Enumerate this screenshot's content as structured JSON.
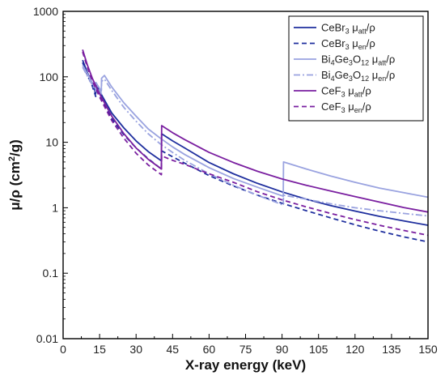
{
  "chart_data": {
    "type": "line",
    "xlabel": "X-ray energy (keV)",
    "ylabel_main": "μ/ρ (cm",
    "ylabel_sup": "2",
    "ylabel_tail": "/g)",
    "xlim": [
      0,
      150
    ],
    "ylim": [
      0.01,
      1000
    ],
    "y_scale": "log",
    "x_ticks": [
      0,
      15,
      30,
      45,
      60,
      75,
      90,
      105,
      120,
      135,
      150
    ],
    "x_tick_labels": [
      "0",
      "15",
      "30",
      "45",
      "60",
      "75",
      "90",
      "105",
      "120",
      "135",
      "150"
    ],
    "y_ticks": [
      0.01,
      0.1,
      1,
      10,
      100,
      1000
    ],
    "y_tick_labels": [
      "0.01",
      "0.1",
      "1",
      "10",
      "100",
      "1000"
    ],
    "grid": false,
    "legend_position": "top-right",
    "series": [
      {
        "name": "CeBr3 μatt/ρ",
        "legend": {
          "main": "CeBr",
          "sub1": "3",
          "mid": " μ",
          "sub2": "att",
          "tail": "/ρ"
        },
        "color": "#1f2f9e",
        "dash": "solid",
        "width": 1.8,
        "x": [
          8,
          10,
          12,
          13.4,
          13.5,
          15,
          20,
          25,
          30,
          35,
          40.4,
          40.5,
          45,
          50,
          60,
          70,
          80,
          90,
          100,
          110,
          120,
          130,
          140,
          150
        ],
        "y": [
          180,
          115,
          80,
          55,
          78,
          60,
          28,
          16.5,
          10.5,
          7.2,
          5.2,
          13.5,
          10.5,
          8.2,
          4.9,
          3.3,
          2.35,
          1.75,
          1.35,
          1.08,
          0.89,
          0.74,
          0.63,
          0.54
        ]
      },
      {
        "name": "CeBr3 μen/ρ",
        "legend": {
          "main": "CeBr",
          "sub1": "3",
          "mid": " μ",
          "sub2": "en",
          "tail": "/ρ"
        },
        "color": "#1f2f9e",
        "dash": "6,4",
        "width": 1.8,
        "x": [
          8,
          10,
          12,
          13.4,
          13.5,
          15,
          20,
          25,
          30,
          35,
          40.4,
          40.5,
          45,
          50,
          60,
          70,
          80,
          90,
          100,
          110,
          120,
          130,
          140,
          150
        ],
        "y": [
          165,
          105,
          72,
          50,
          70,
          52,
          23,
          13,
          8.2,
          5.6,
          3.9,
          7.4,
          6.0,
          4.8,
          3.1,
          2.15,
          1.55,
          1.17,
          0.9,
          0.7,
          0.55,
          0.44,
          0.36,
          0.3
        ]
      },
      {
        "name": "Bi4Ge3O12 μatt/ρ",
        "legend": {
          "main": "Bi",
          "sub1": "4",
          "mid": "Ge",
          "sub2": "3",
          "mid2": "O",
          "sub3": "12",
          "mid3": " μ",
          "sub4": "att",
          "tail": "/ρ"
        },
        "color": "#9aa3e0",
        "dash": "solid",
        "width": 1.8,
        "x": [
          8,
          11,
          13.4,
          13.5,
          15.7,
          15.8,
          17,
          20,
          25,
          30,
          35,
          40,
          45,
          50,
          60,
          70,
          80,
          90.5,
          90.6,
          100,
          110,
          120,
          130,
          140,
          150
        ],
        "y": [
          150,
          95,
          65,
          82,
          60,
          95,
          105,
          70,
          40,
          25,
          16,
          11.5,
          8.5,
          6.5,
          4.1,
          2.8,
          2.05,
          1.5,
          5.0,
          3.9,
          3.05,
          2.45,
          2.0,
          1.7,
          1.45
        ]
      },
      {
        "name": "Bi4Ge3O12 μen/ρ",
        "legend": {
          "main": "Bi",
          "sub1": "4",
          "mid": "Ge",
          "sub2": "3",
          "mid2": "O",
          "sub3": "12",
          "mid3": " μ",
          "sub4": "en",
          "tail": "/ρ"
        },
        "color": "#9aa3e0",
        "dash": "8,3,2,3",
        "width": 1.8,
        "x": [
          8,
          11,
          13.4,
          13.5,
          15.7,
          15.8,
          17,
          20,
          25,
          30,
          35,
          40,
          45,
          50,
          60,
          70,
          80,
          90.5,
          90.6,
          100,
          110,
          120,
          130,
          140,
          150
        ],
        "y": [
          140,
          88,
          60,
          75,
          55,
          85,
          92,
          62,
          34,
          21,
          13.5,
          9.4,
          7.0,
          5.3,
          3.3,
          2.2,
          1.55,
          1.1,
          1.55,
          1.35,
          1.15,
          1.0,
          0.9,
          0.82,
          0.75
        ]
      },
      {
        "name": "CeF3 μatt/ρ",
        "legend": {
          "main": "CeF",
          "sub1": "3",
          "mid": " μ",
          "sub2": "att",
          "tail": "/ρ"
        },
        "color": "#7a1fa0",
        "dash": "solid",
        "width": 1.8,
        "x": [
          8,
          10,
          12,
          15,
          20,
          25,
          30,
          35,
          40.4,
          40.5,
          45,
          50,
          60,
          70,
          80,
          90,
          100,
          110,
          120,
          130,
          140,
          150
        ],
        "y": [
          260,
          150,
          95,
          55,
          25,
          13.5,
          8.2,
          5.5,
          3.9,
          18,
          14,
          11,
          7,
          4.9,
          3.6,
          2.75,
          2.2,
          1.8,
          1.48,
          1.22,
          1.01,
          0.86
        ]
      },
      {
        "name": "CeF3 μen/ρ",
        "legend": {
          "main": "CeF",
          "sub1": "3",
          "mid": " μ",
          "sub2": "en",
          "tail": "/ρ"
        },
        "color": "#7a1fa0",
        "dash": "6,4",
        "width": 1.8,
        "x": [
          8,
          10,
          12,
          15,
          20,
          25,
          30,
          35,
          40.4,
          40.5,
          45,
          50,
          60,
          70,
          80,
          90,
          100,
          110,
          120,
          130,
          140,
          150
        ],
        "y": [
          240,
          138,
          87,
          49,
          21.5,
          11.5,
          6.8,
          4.5,
          3.2,
          6.2,
          5.3,
          4.6,
          3.3,
          2.45,
          1.75,
          1.32,
          1.03,
          0.82,
          0.66,
          0.54,
          0.45,
          0.38
        ]
      }
    ]
  }
}
